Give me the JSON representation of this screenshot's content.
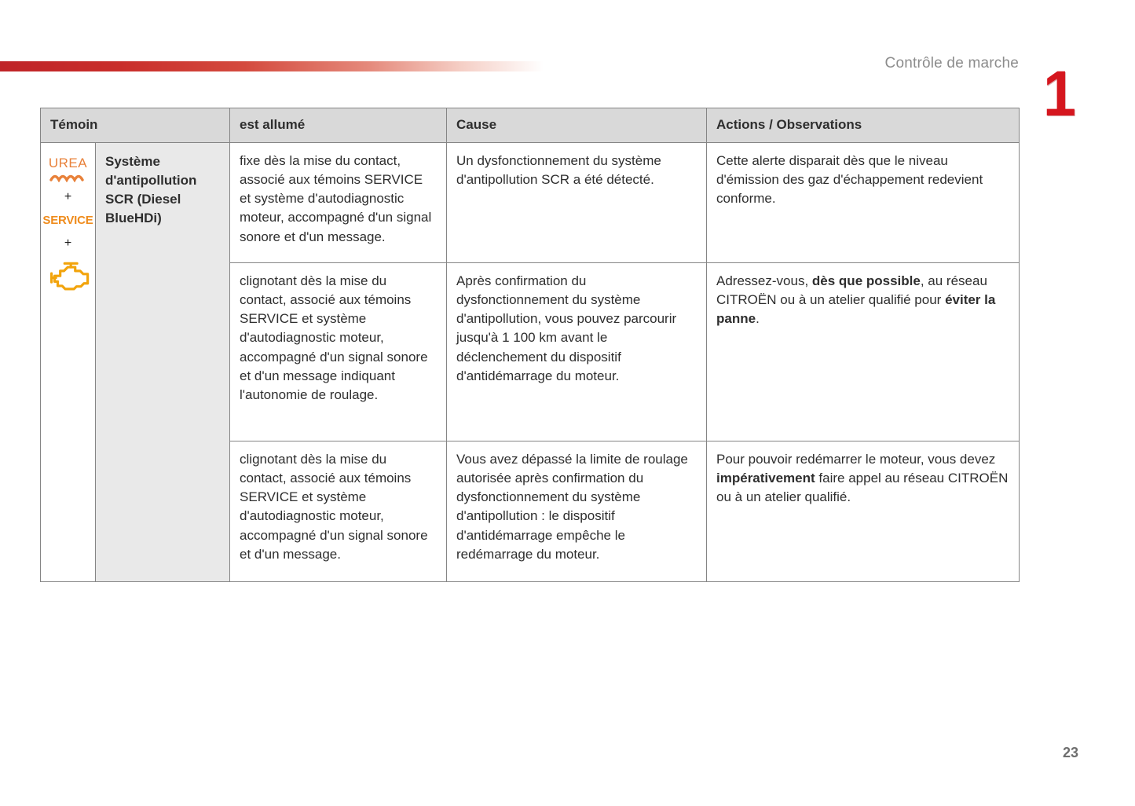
{
  "page": {
    "header_title": "Contrôle de marche",
    "chapter_number": "1",
    "page_number": "23"
  },
  "colors": {
    "accent_red": "#d5161e",
    "warning_orange": "#e8813a",
    "service_orange": "#ef8c1d",
    "engine_amber": "#f2a40c",
    "header_gray": "#d9d9d9",
    "system_cell_gray": "#e9e9e9"
  },
  "table": {
    "headers": [
      "Témoin",
      "est allumé",
      "Cause",
      "Actions / Observations"
    ],
    "temoin": {
      "urea_label": "UREA",
      "plus_label": "+",
      "service_label": "SERVICE",
      "icons": [
        "urea-wave-icon",
        "engine-warning-icon"
      ],
      "system_label": "Système d'antipollution SCR (Diesel BlueHDi)"
    },
    "rows": [
      {
        "est_allume": [
          {
            "text": "fixe dès la mise du contact, associé aux témoins SERVICE et système d'autodiagnostic moteur, accompagné d'un signal sonore et d'un message.",
            "bold": false
          }
        ],
        "cause": [
          {
            "text": "Un dysfonctionnement du système d'antipollution SCR a été détecté.",
            "bold": false
          }
        ],
        "actions": [
          {
            "text": "Cette alerte disparait dès que le niveau d'émission des gaz d'échappement redevient conforme.",
            "bold": false
          }
        ]
      },
      {
        "est_allume": [
          {
            "text": "clignotant dès la mise du contact, associé aux témoins SERVICE et système d'autodiagnostic moteur, accompagné d'un signal sonore et d'un message indiquant l'autonomie de roulage.",
            "bold": false
          }
        ],
        "cause": [
          {
            "text": "Après confirmation du dysfonctionnement du système d'antipollution, vous pouvez parcourir jusqu'à 1 100 km avant le déclenchement du dispositif d'antidémarrage du moteur.",
            "bold": false
          }
        ],
        "actions": [
          {
            "text": "Adressez-vous, ",
            "bold": false
          },
          {
            "text": "dès que possible",
            "bold": true
          },
          {
            "text": ", au réseau CITROËN ou à un atelier qualifié pour ",
            "bold": false
          },
          {
            "text": "éviter la panne",
            "bold": true
          },
          {
            "text": ".",
            "bold": false
          }
        ]
      },
      {
        "est_allume": [
          {
            "text": "clignotant dès la mise du contact, associé aux témoins SERVICE et système d'autodiagnostic moteur, accompagné d'un signal sonore et d'un message.",
            "bold": false
          }
        ],
        "cause": [
          {
            "text": "Vous avez dépassé la limite de roulage autorisée après confirmation du dysfonctionnement du système d'antipollution : le dispositif d'antidémarrage empêche le redémarrage du moteur.",
            "bold": false
          }
        ],
        "actions": [
          {
            "text": "Pour pouvoir redémarrer le moteur, vous devez ",
            "bold": false
          },
          {
            "text": "impérativement",
            "bold": true
          },
          {
            "text": " faire appel au réseau CITROËN ou à un atelier qualifié.",
            "bold": false
          }
        ]
      }
    ]
  }
}
